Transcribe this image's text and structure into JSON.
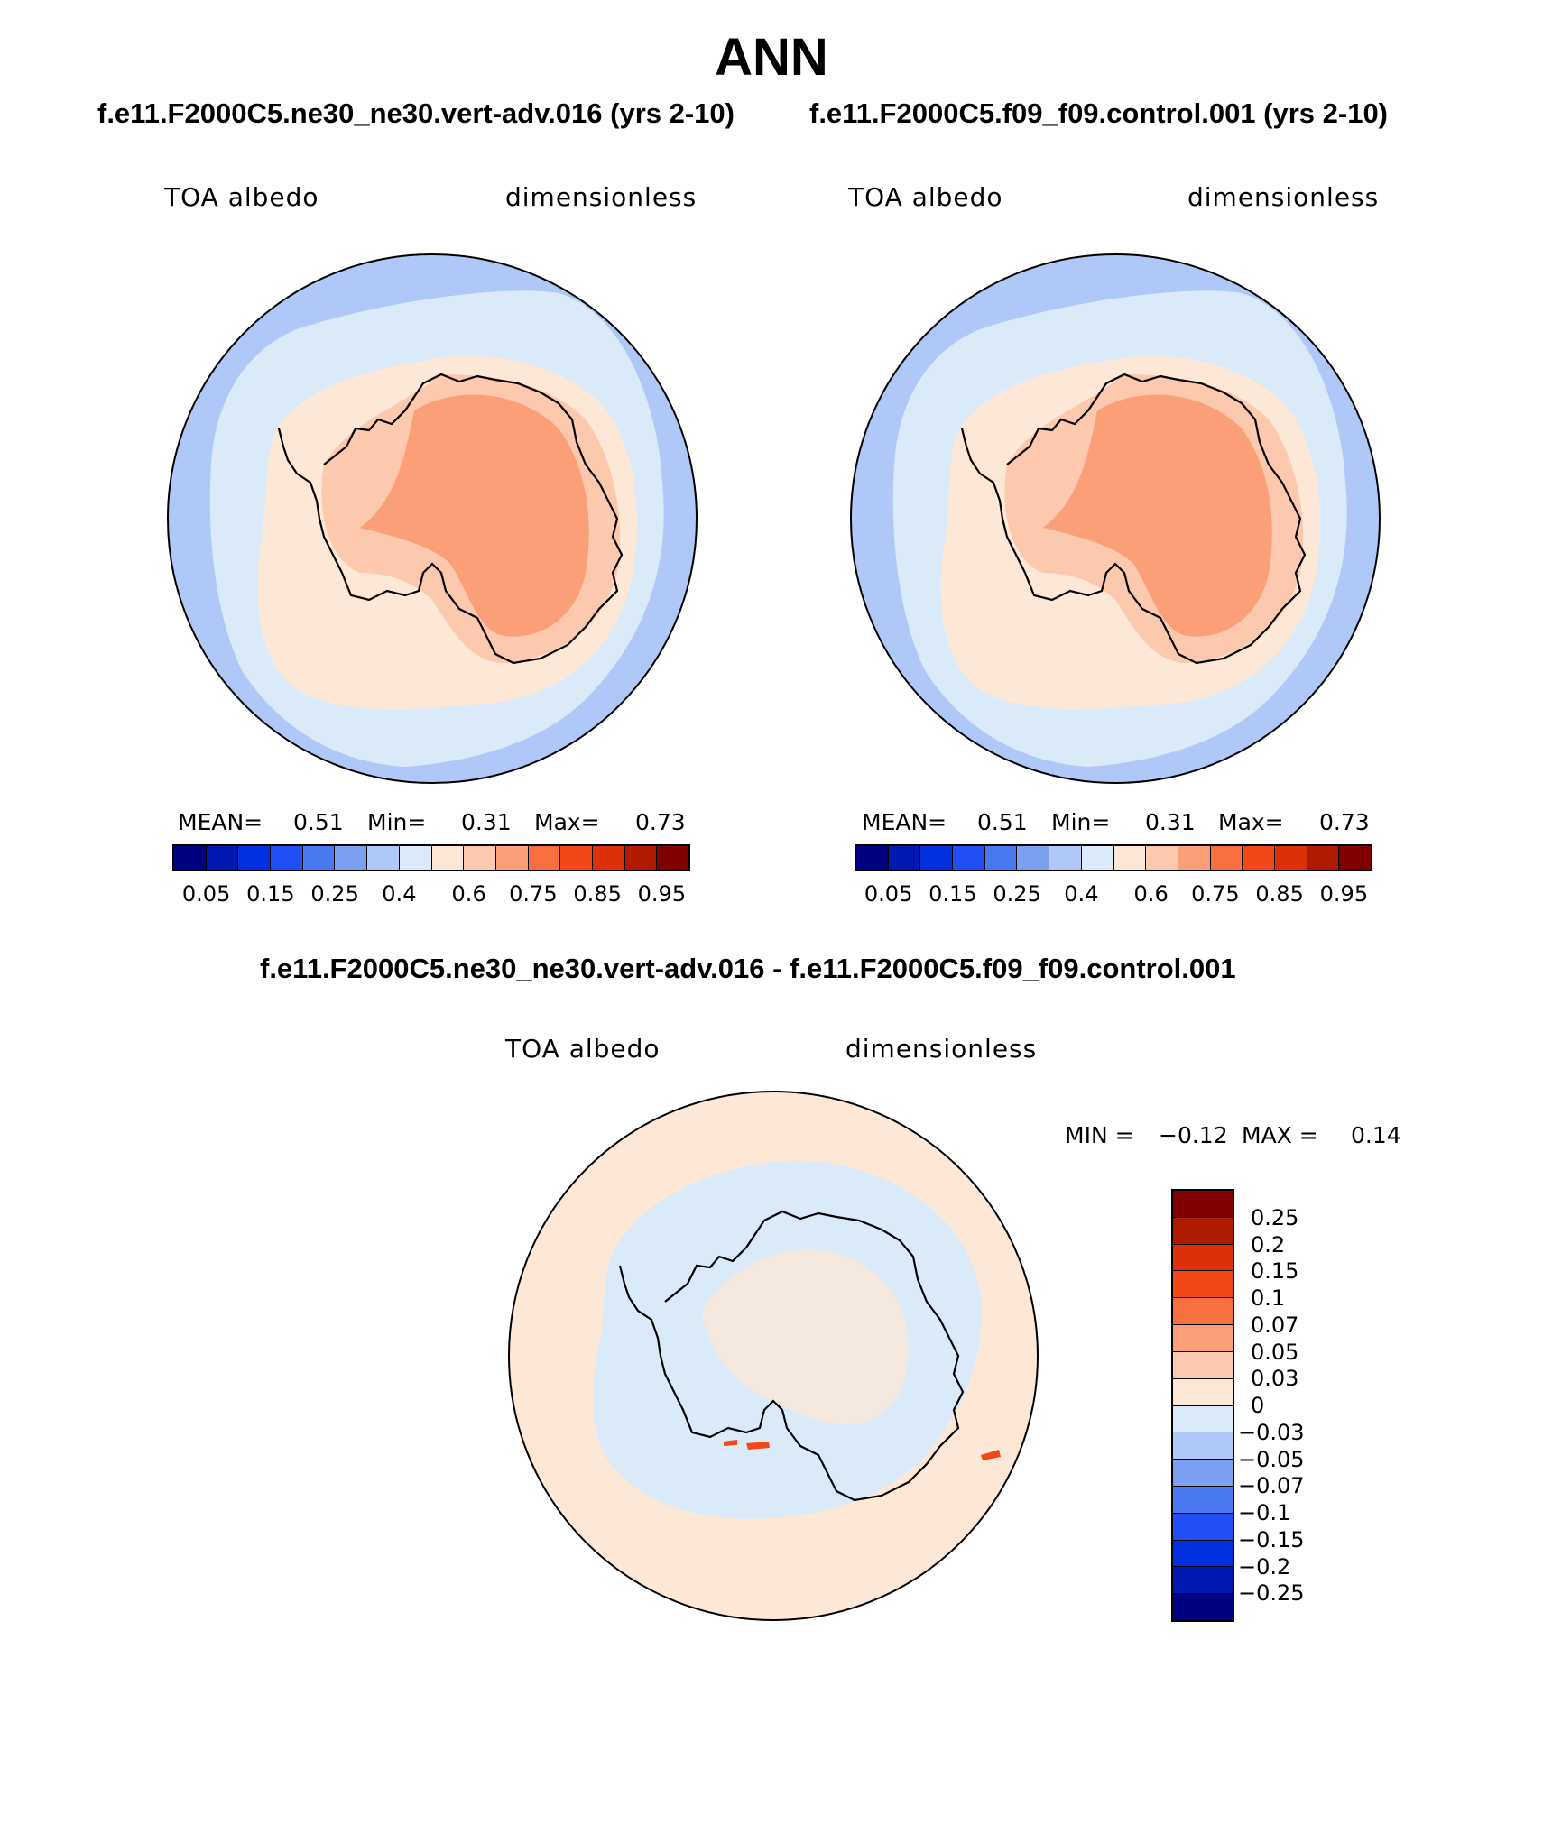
{
  "title": "ANN",
  "panels": [
    {
      "case": "f.e11.F2000C5.ne30_ne30.vert-adv.016 (yrs 2-10)",
      "variable": "TOA albedo",
      "units": "dimensionless",
      "mean_label": "MEAN=",
      "mean": "0.51",
      "min_label": "Min=",
      "min": "0.31",
      "max_label": "Max=",
      "max": "0.73"
    },
    {
      "case": "f.e11.F2000C5.f09_f09.control.001 (yrs 2-10)",
      "variable": "TOA albedo",
      "units": "dimensionless",
      "mean_label": "MEAN=",
      "mean": "0.51",
      "min_label": "Min=",
      "min": "0.31",
      "max_label": "Max=",
      "max": "0.73"
    }
  ],
  "diff": {
    "case": "f.e11.F2000C5.ne30_ne30.vert-adv.016 - f.e11.F2000C5.f09_f09.control.001",
    "variable": "TOA albedo",
    "units": "dimensionless",
    "min_label": "MIN =",
    "min": "−0.12",
    "max_label": "MAX =",
    "max": "0.14"
  },
  "abs_colorbar": {
    "colors": [
      "#000080",
      "#0019b0",
      "#0030e0",
      "#2050f5",
      "#4a78f0",
      "#7ba0f0",
      "#b0c8f8",
      "#daeaf8",
      "#fde7d6",
      "#fcc8ae",
      "#fb9f78",
      "#f8703f",
      "#f24818",
      "#dc3008",
      "#b01b00",
      "#800000"
    ],
    "ticks": [
      "0.05",
      "0.15",
      "0.25",
      "0.4",
      "0.6",
      "0.75",
      "0.85",
      "0.95"
    ]
  },
  "diff_colorbar": {
    "colors_top_to_bottom": [
      "#800000",
      "#b01b00",
      "#dc3008",
      "#f24818",
      "#f8703f",
      "#fb9f78",
      "#fcc8ae",
      "#fde7d6",
      "#daeaf8",
      "#b0c8f8",
      "#7ba0f0",
      "#4a78f0",
      "#2050f5",
      "#0030e0",
      "#0019b0",
      "#000080"
    ],
    "ticks_top_to_bottom": [
      "0.25",
      "0.2",
      "0.15",
      "0.1",
      "0.07",
      "0.05",
      "0.03",
      "0",
      "−0.03",
      "−0.05",
      "−0.07",
      "−0.1",
      "−0.15",
      "−0.2",
      "−0.25"
    ]
  },
  "map_colors": {
    "ocean_outer": "#b0c8f8",
    "ocean_inner": "#daeaf8",
    "sea_ice": "#fde7d6",
    "coast": "#fcc8ae",
    "plateau": "#fb9f78",
    "diff_base": "#fde7d6",
    "diff_neg": "#daeaf8",
    "diff_pos": "#f24818"
  }
}
